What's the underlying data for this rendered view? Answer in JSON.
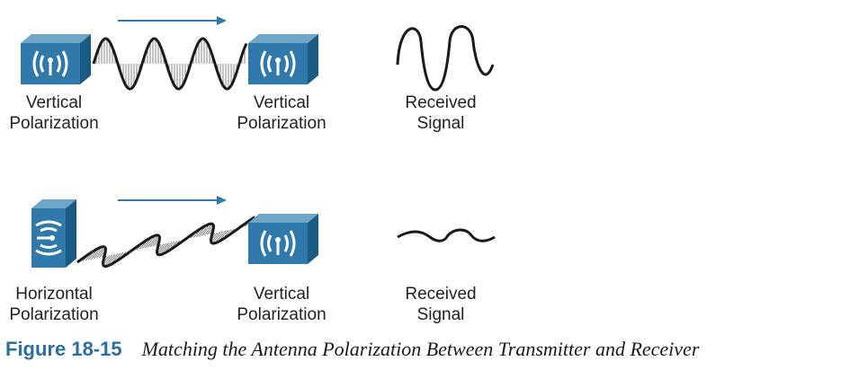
{
  "colors": {
    "antenna_front": "#2f7aaa",
    "antenna_side": "#1b5a82",
    "antenna_top": "#6fa6c8",
    "arrow": "#2f7aaa",
    "wave": "#1a1a1a",
    "hatch": "#7a7a7a",
    "figure_number": "#2c6e9e"
  },
  "row1": {
    "transmitter": {
      "label_line1": "Vertical",
      "label_line2": "Polarization"
    },
    "receiver": {
      "label_line1": "Vertical",
      "label_line2": "Polarization"
    },
    "signal": {
      "label_line1": "Received",
      "label_line2": "Signal"
    }
  },
  "row2": {
    "transmitter": {
      "label_line1": "Horizontal",
      "label_line2": "Polarization"
    },
    "receiver": {
      "label_line1": "Vertical",
      "label_line2": "Polarization"
    },
    "signal": {
      "label_line1": "Received",
      "label_line2": "Signal"
    }
  },
  "caption": {
    "figure_number": "Figure 18-15",
    "text": "Matching the Antenna Polarization Between Transmitter and Receiver"
  }
}
